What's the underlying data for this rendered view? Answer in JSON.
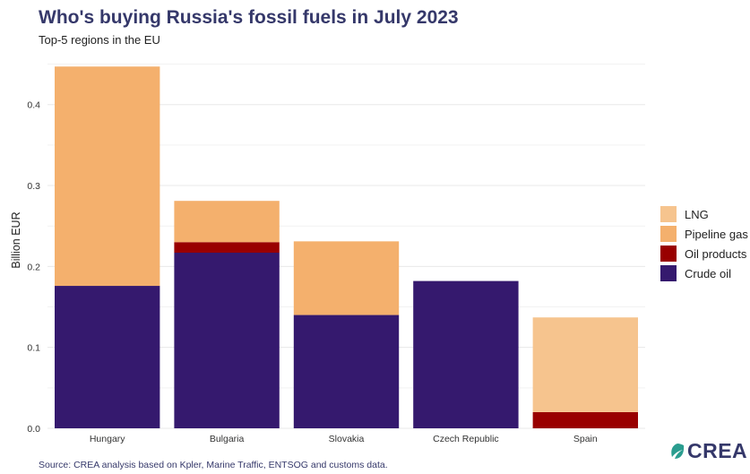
{
  "title": "Who's buying Russia's fossil fuels in July 2023",
  "subtitle": "Top-5 regions in the EU",
  "source": "Source: CREA analysis based on Kpler, Marine Traffic, ENTSOG and customs data.",
  "logo_text": "CREA",
  "colors": {
    "LNG": "#f6c48e",
    "Pipeline gas": "#f4b06d",
    "Oil products": "#990000",
    "Crude oil": "#35196e",
    "grid": "#e8e8e8",
    "brand": "#35386a",
    "logo_leaf": "#2a9d8f"
  },
  "legend": [
    "LNG",
    "Pipeline gas",
    "Oil products",
    "Crude oil"
  ],
  "chart_data": {
    "type": "bar",
    "stacked": true,
    "categories": [
      "Hungary",
      "Bulgaria",
      "Slovakia",
      "Czech Republic",
      "Spain"
    ],
    "series": [
      {
        "name": "Crude oil",
        "values": [
          0.176,
          0.217,
          0.14,
          0.182,
          0
        ]
      },
      {
        "name": "Oil products",
        "values": [
          0,
          0.013,
          0,
          0,
          0.02
        ]
      },
      {
        "name": "Pipeline gas",
        "values": [
          0.271,
          0.051,
          0.091,
          0,
          0
        ]
      },
      {
        "name": "LNG",
        "values": [
          0,
          0,
          0,
          0,
          0.117
        ]
      }
    ],
    "ylabel": "Billion EUR",
    "yticks": [
      "0.0",
      "0.1",
      "0.2",
      "0.3",
      "0.4"
    ],
    "ylim": [
      0,
      0.465
    ],
    "grid": true,
    "legend_position": "right"
  }
}
